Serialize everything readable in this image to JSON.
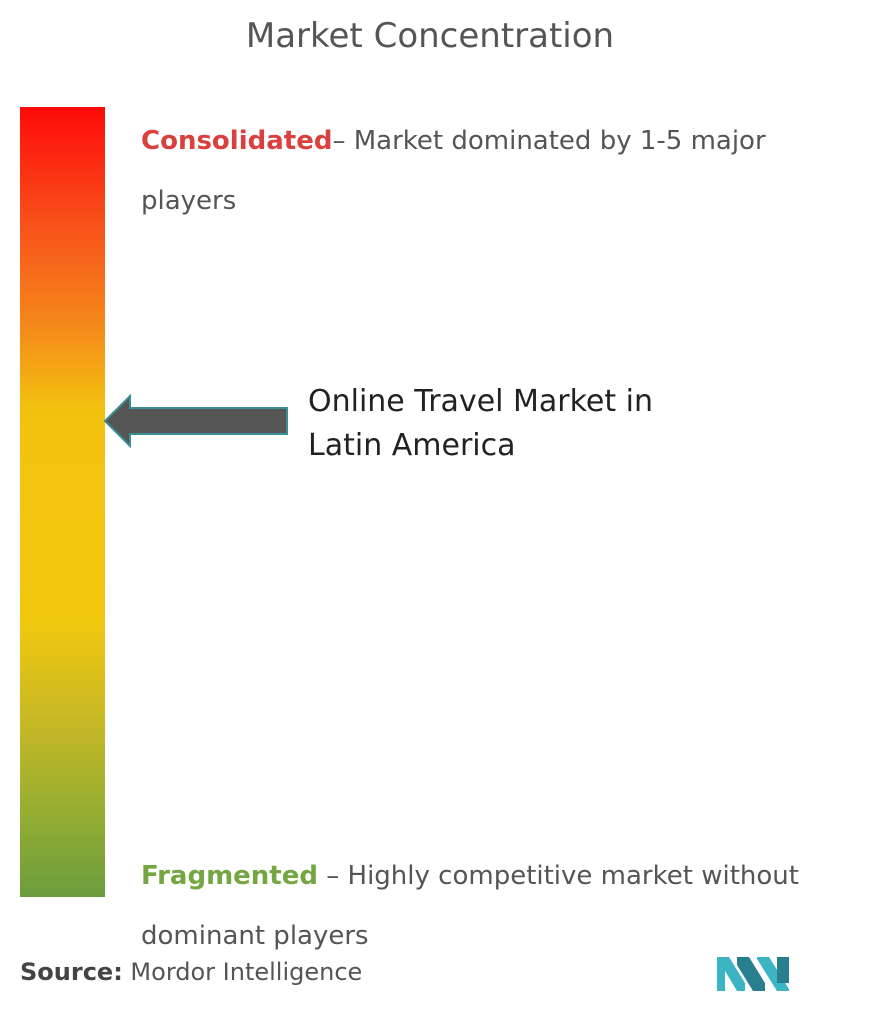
{
  "title": "Market Concentration",
  "scale": {
    "top": {
      "label": "Consolidated",
      "description": "– Market dominated by 1-5 major players"
    },
    "bottom": {
      "label": "Fragmented",
      "description": " – Highly competitive market without dominant players"
    }
  },
  "marker": {
    "label": "Online Travel Market in Latin America"
  },
  "source": {
    "label": "Source:",
    "text": " Mordor Intelligence"
  }
}
